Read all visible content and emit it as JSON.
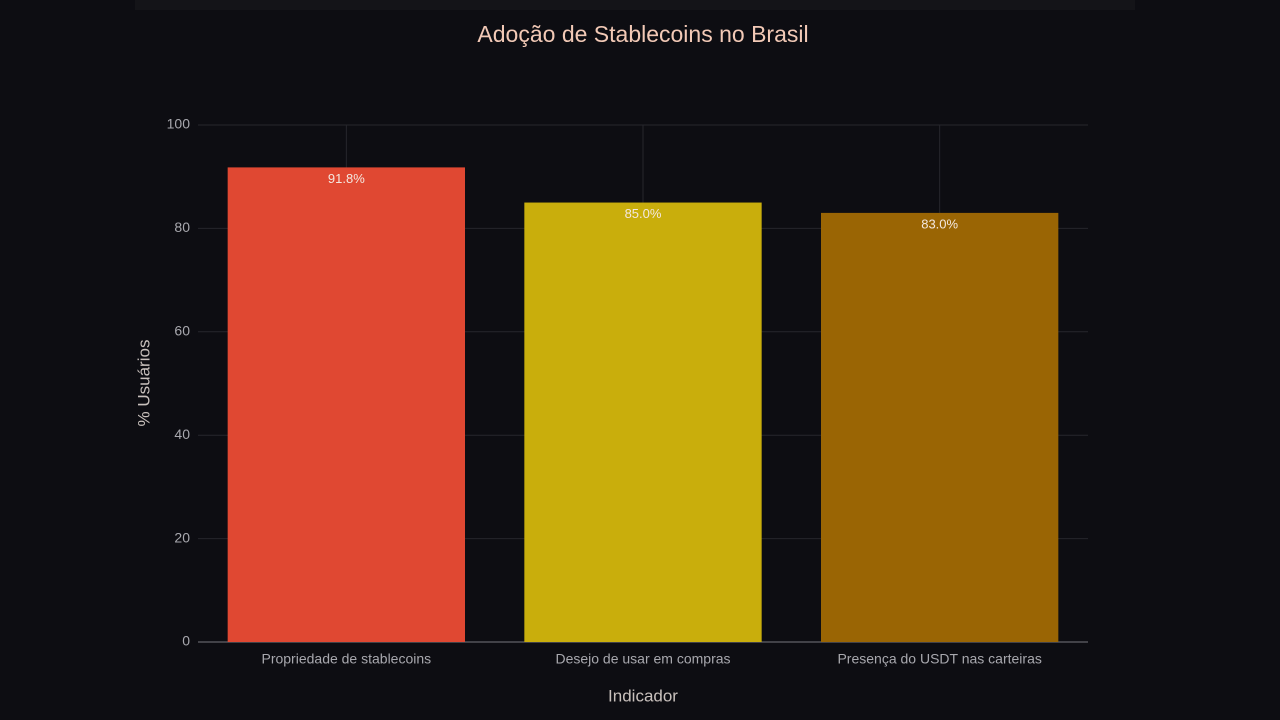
{
  "chart_data": {
    "type": "bar",
    "title": "Adoção de Stablecoins no Brasil",
    "x_label": "Indicador",
    "y_label": "% Usuários",
    "categories": [
      "Propriedade de stablecoins",
      "Desejo de usar em compras",
      "Presença do USDT nas carteiras"
    ],
    "values": [
      91.8,
      85.0,
      83.0
    ],
    "value_labels": [
      "91.8%",
      "85.0%",
      "83.0%"
    ],
    "colors": [
      "#e04832",
      "#c9ae0c",
      "#9a6504"
    ],
    "ylim": [
      0,
      100
    ],
    "yticks": [
      0,
      20,
      40,
      60,
      80,
      100
    ],
    "grid": true
  }
}
